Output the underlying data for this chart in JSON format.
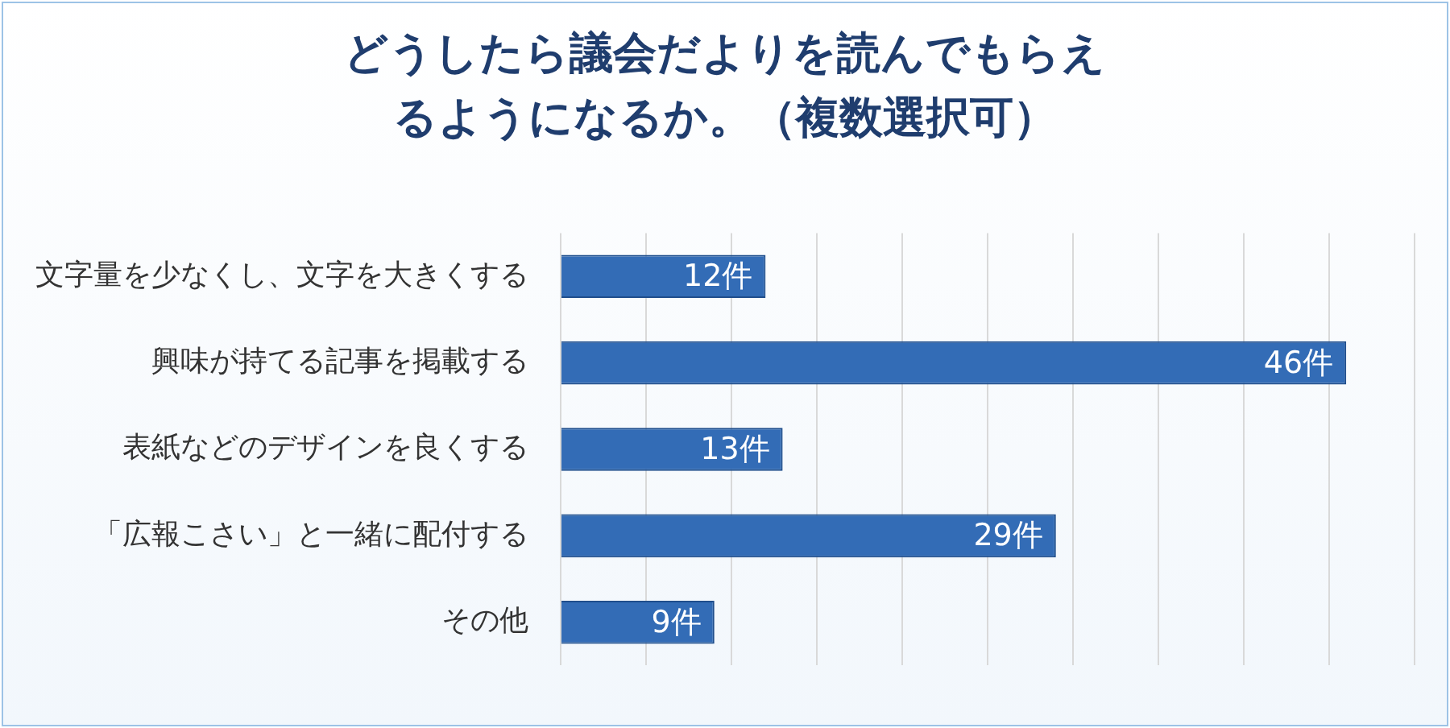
{
  "chart_data": {
    "type": "bar",
    "orientation": "horizontal",
    "title": "どうしたら議会だよりを読んでもらえるようになるか。（複数選択可）",
    "categories": [
      "文字量を少なくし、文字を大きくする",
      "興味が持てる記事を掲載する",
      "表紙などのデザインを良くする",
      "「広報こさい」と一緒に配付する",
      "その他"
    ],
    "values": [
      12,
      46,
      13,
      29,
      9
    ],
    "value_labels": [
      "12件",
      "46件",
      "13件",
      "29件",
      "9件"
    ],
    "color": "#336cb6",
    "xlim": [
      0,
      50
    ],
    "xticks": [
      {
        "value": 0,
        "label": null
      },
      {
        "value": 5,
        "label": null
      },
      {
        "value": 10,
        "label": null
      },
      {
        "value": 15,
        "label": null
      },
      {
        "value": 20,
        "label": null
      },
      {
        "value": 25,
        "label": null
      },
      {
        "value": 30,
        "label": null
      },
      {
        "value": 35,
        "label": null
      },
      {
        "value": 40,
        "label": null
      },
      {
        "value": 45,
        "label": null
      },
      {
        "value": 50,
        "label": null
      }
    ],
    "tick_labels": "y",
    "grid": "x",
    "legend": false
  }
}
